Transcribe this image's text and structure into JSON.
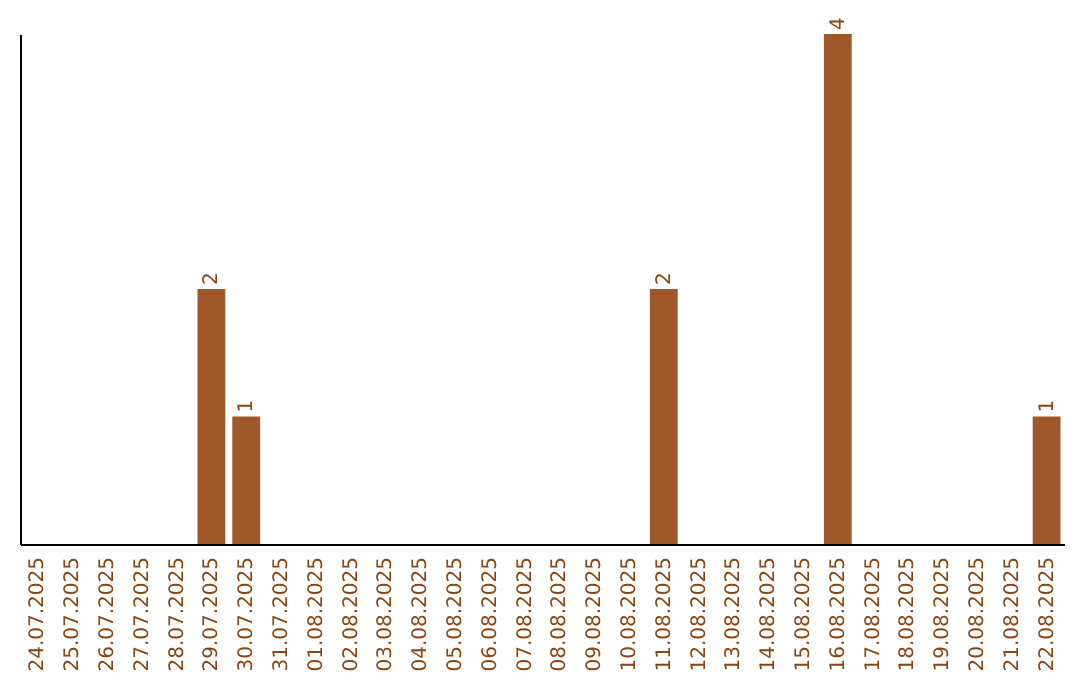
{
  "chart_data": {
    "type": "bar",
    "categories": [
      "24.07.2025",
      "25.07.2025",
      "26.07.2025",
      "27.07.2025",
      "28.07.2025",
      "29.07.2025",
      "30.07.2025",
      "31.07.2025",
      "01.08.2025",
      "02.08.2025",
      "03.08.2025",
      "04.08.2025",
      "05.08.2025",
      "06.08.2025",
      "07.08.2025",
      "08.08.2025",
      "09.08.2025",
      "10.08.2025",
      "11.08.2025",
      "12.08.2025",
      "13.08.2025",
      "14.08.2025",
      "15.08.2025",
      "16.08.2025",
      "17.08.2025",
      "18.08.2025",
      "19.08.2025",
      "20.08.2025",
      "21.08.2025",
      "22.08.2025"
    ],
    "values": [
      0,
      0,
      0,
      0,
      0,
      2,
      1,
      0,
      0,
      0,
      0,
      0,
      0,
      0,
      0,
      0,
      0,
      0,
      2,
      0,
      0,
      0,
      0,
      4,
      0,
      0,
      0,
      0,
      0,
      1
    ],
    "value_labels": [
      null,
      null,
      null,
      null,
      null,
      "2",
      "1",
      null,
      null,
      null,
      null,
      null,
      null,
      null,
      null,
      null,
      null,
      null,
      "2",
      null,
      null,
      null,
      null,
      "4",
      null,
      null,
      null,
      null,
      null,
      "1"
    ],
    "color": "#a0572a"
  }
}
